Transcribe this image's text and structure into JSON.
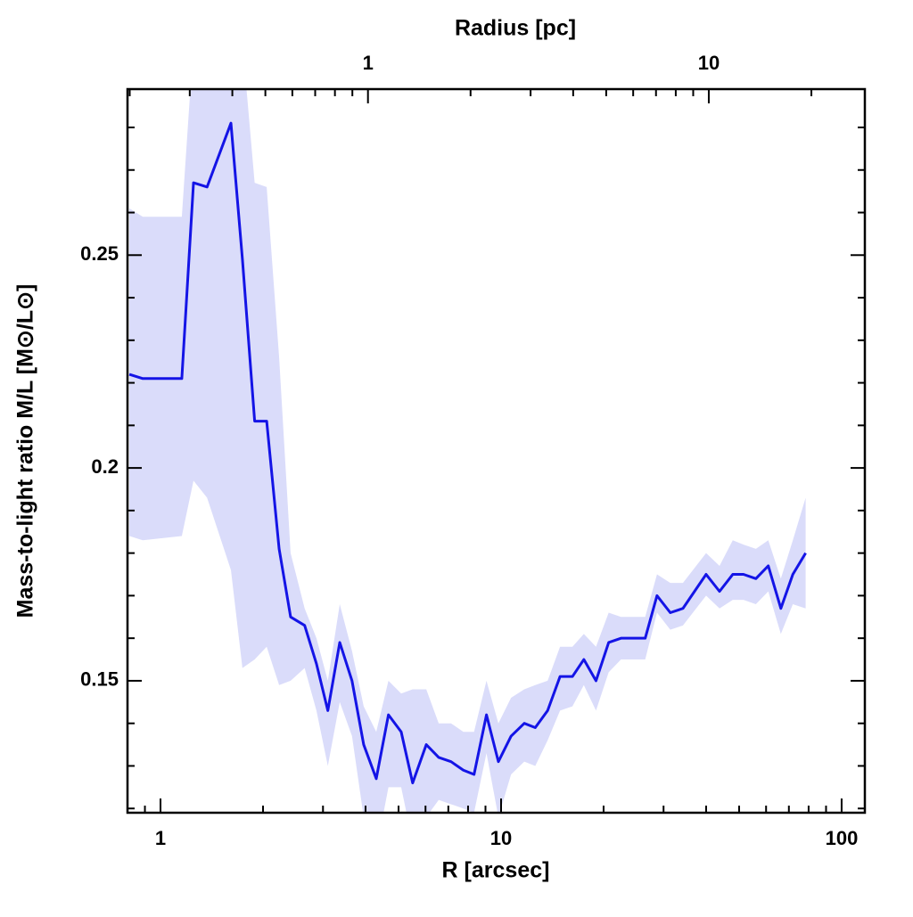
{
  "chart_data": {
    "type": "line",
    "xlabel": "R [arcsec]",
    "ylabel": "Mass-to-light ratio M/L [M⊙/L⊙]",
    "x2label": "Radius [pc]",
    "xscale": "log",
    "xlim": [
      0.8,
      117
    ],
    "xticks": [
      1,
      10,
      100
    ],
    "xminor_ticks": [
      0.8,
      0.9,
      2,
      3,
      4,
      5,
      6,
      7,
      8,
      9,
      20,
      30,
      40,
      50,
      60,
      70,
      80,
      90
    ],
    "x2lim": [
      0.197,
      28.7
    ],
    "x2ticks": [
      1,
      10
    ],
    "x2minor_ticks": [
      0.2,
      0.3,
      0.4,
      0.5,
      0.6,
      0.7,
      0.8,
      0.9,
      2,
      3,
      4,
      5,
      6,
      7,
      8,
      9,
      20
    ],
    "ylim": [
      0.119,
      0.289
    ],
    "yticks": [
      0.15,
      0.2,
      0.25
    ],
    "yminor_ticks": [
      0.12,
      0.13,
      0.14,
      0.16,
      0.17,
      0.18,
      0.19,
      0.21,
      0.22,
      0.23,
      0.24,
      0.26,
      0.27,
      0.28
    ],
    "x": [
      0.81,
      0.887,
      1.155,
      1.25,
      1.37,
      1.61,
      1.74,
      1.89,
      2.05,
      2.23,
      2.41,
      2.65,
      2.87,
      3.1,
      3.36,
      3.65,
      3.95,
      4.3,
      4.67,
      5.09,
      5.5,
      6.03,
      6.56,
      7.13,
      7.75,
      8.33,
      9.06,
      9.82,
      10.7,
      11.7,
      12.6,
      13.7,
      14.9,
      16.2,
      17.5,
      19.0,
      20.7,
      22.5,
      24.5,
      26.5,
      28.7,
      31.4,
      34.2,
      40.0,
      43.8,
      47.9,
      51.5,
      56.0,
      60.9,
      66.3,
      71.9,
      78.4
    ],
    "series": [
      {
        "color": "#1414e6",
        "band_color": "#dadcfa",
        "values": [
          0.222,
          0.221,
          0.221,
          0.267,
          0.266,
          0.281,
          0.249,
          0.211,
          0.211,
          0.181,
          0.165,
          0.163,
          0.154,
          0.143,
          0.159,
          0.15,
          0.135,
          0.127,
          0.142,
          0.138,
          0.126,
          0.135,
          0.132,
          0.131,
          0.129,
          0.128,
          0.142,
          0.131,
          0.137,
          0.14,
          0.139,
          0.143,
          0.151,
          0.151,
          0.155,
          0.15,
          0.159,
          0.16,
          0.16,
          0.16,
          0.17,
          0.166,
          0.167,
          0.175,
          0.171,
          0.175,
          0.175,
          0.174,
          0.177,
          0.167,
          0.175,
          0.18
        ],
        "upper": [
          0.261,
          0.259,
          0.259,
          0.3,
          0.3,
          0.3,
          0.3,
          0.267,
          0.266,
          0.226,
          0.18,
          0.167,
          0.16,
          0.15,
          0.168,
          0.157,
          0.144,
          0.138,
          0.15,
          0.147,
          0.148,
          0.148,
          0.14,
          0.14,
          0.138,
          0.138,
          0.15,
          0.14,
          0.146,
          0.148,
          0.149,
          0.15,
          0.158,
          0.158,
          0.161,
          0.158,
          0.166,
          0.165,
          0.165,
          0.165,
          0.175,
          0.173,
          0.173,
          0.18,
          0.177,
          0.183,
          0.182,
          0.181,
          0.183,
          0.174,
          0.183,
          0.193
        ],
        "lower": [
          0.184,
          0.183,
          0.184,
          0.197,
          0.193,
          0.176,
          0.153,
          0.155,
          0.158,
          0.149,
          0.15,
          0.153,
          0.143,
          0.13,
          0.145,
          0.137,
          0.118,
          0.11,
          0.125,
          0.125,
          0.112,
          0.118,
          0.122,
          0.121,
          0.12,
          0.119,
          0.133,
          0.118,
          0.128,
          0.131,
          0.13,
          0.136,
          0.143,
          0.144,
          0.149,
          0.143,
          0.152,
          0.155,
          0.155,
          0.155,
          0.166,
          0.162,
          0.163,
          0.17,
          0.167,
          0.169,
          0.169,
          0.168,
          0.171,
          0.161,
          0.168,
          0.167
        ]
      }
    ]
  }
}
